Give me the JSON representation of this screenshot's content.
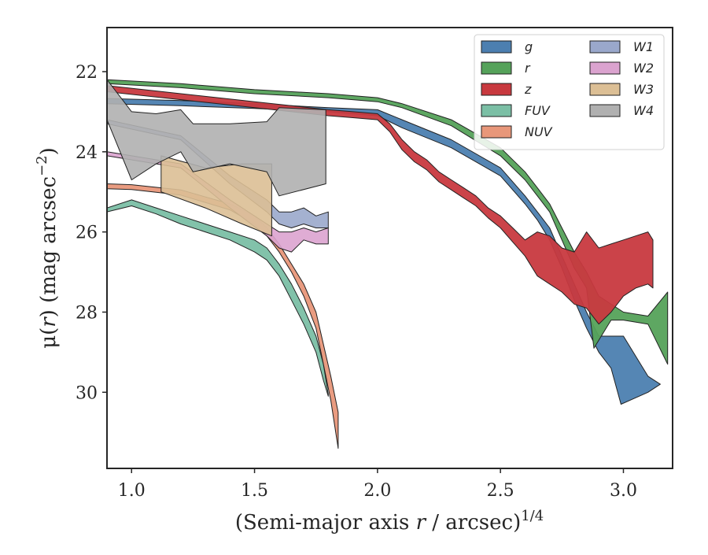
{
  "chart_data": {
    "type": "area",
    "xlabel_main": "(Semi-major axis ",
    "xlabel_var": "r",
    "xlabel_tail": " / arcsec)",
    "xlabel_exp": "1/4",
    "ylabel_main": "μ(",
    "ylabel_var": "r",
    "ylabel_tail": ") (mag arcsec",
    "ylabel_exp": "−2",
    "ylabel_close": ")",
    "xlim": [
      0.9,
      3.2
    ],
    "ylim": [
      31.9,
      20.9
    ],
    "y_inverted": true,
    "xticks": [
      1.0,
      1.5,
      2.0,
      2.5,
      3.0
    ],
    "xtick_labels": [
      "1.0",
      "1.5",
      "2.0",
      "2.5",
      "3.0"
    ],
    "yticks": [
      22,
      24,
      26,
      28,
      30
    ],
    "ytick_labels": [
      "22",
      "24",
      "26",
      "28",
      "30"
    ],
    "grid": false,
    "legend_position": "top-right",
    "legend_columns": 2,
    "series": [
      {
        "name": "g",
        "color": "#4c7fb0",
        "upper": [
          [
            0.9,
            22.67
          ],
          [
            1.2,
            22.72
          ],
          [
            1.5,
            22.8
          ],
          [
            1.8,
            22.9
          ],
          [
            2.0,
            22.95
          ],
          [
            2.1,
            23.2
          ],
          [
            2.3,
            23.7
          ],
          [
            2.5,
            24.4
          ],
          [
            2.6,
            25.1
          ],
          [
            2.65,
            25.5
          ],
          [
            2.7,
            25.9
          ],
          [
            2.75,
            26.6
          ],
          [
            2.8,
            27.3
          ],
          [
            2.85,
            28.0
          ],
          [
            2.9,
            28.6
          ],
          [
            3.0,
            28.6
          ],
          [
            3.1,
            29.6
          ],
          [
            3.15,
            29.8
          ]
        ],
        "lower": [
          [
            0.9,
            22.8
          ],
          [
            1.2,
            22.85
          ],
          [
            1.5,
            22.92
          ],
          [
            1.8,
            23.0
          ],
          [
            2.0,
            23.1
          ],
          [
            2.1,
            23.4
          ],
          [
            2.3,
            23.9
          ],
          [
            2.5,
            24.6
          ],
          [
            2.6,
            25.3
          ],
          [
            2.65,
            25.7
          ],
          [
            2.7,
            26.2
          ],
          [
            2.75,
            26.9
          ],
          [
            2.8,
            27.7
          ],
          [
            2.85,
            28.4
          ],
          [
            2.9,
            29.0
          ],
          [
            2.95,
            29.4
          ],
          [
            2.99,
            30.3
          ],
          [
            3.1,
            30.0
          ],
          [
            3.15,
            29.8
          ]
        ]
      },
      {
        "name": "r",
        "color": "#55a25a",
        "upper": [
          [
            0.9,
            22.2
          ],
          [
            1.2,
            22.3
          ],
          [
            1.5,
            22.45
          ],
          [
            1.8,
            22.55
          ],
          [
            2.0,
            22.65
          ],
          [
            2.1,
            22.8
          ],
          [
            2.3,
            23.2
          ],
          [
            2.5,
            23.9
          ],
          [
            2.6,
            24.5
          ],
          [
            2.65,
            24.9
          ],
          [
            2.7,
            25.3
          ],
          [
            2.75,
            25.9
          ],
          [
            2.8,
            26.5
          ],
          [
            2.85,
            27.0
          ],
          [
            2.9,
            27.6
          ],
          [
            3.0,
            28.0
          ],
          [
            3.1,
            28.1
          ],
          [
            3.18,
            27.5
          ]
        ],
        "lower": [
          [
            0.9,
            22.3
          ],
          [
            1.2,
            22.4
          ],
          [
            1.5,
            22.55
          ],
          [
            1.8,
            22.65
          ],
          [
            2.0,
            22.75
          ],
          [
            2.1,
            22.9
          ],
          [
            2.3,
            23.35
          ],
          [
            2.5,
            24.1
          ],
          [
            2.6,
            24.7
          ],
          [
            2.65,
            25.1
          ],
          [
            2.7,
            25.5
          ],
          [
            2.75,
            26.2
          ],
          [
            2.8,
            26.9
          ],
          [
            2.85,
            27.4
          ],
          [
            2.88,
            28.9
          ],
          [
            2.95,
            28.2
          ],
          [
            3.0,
            28.2
          ],
          [
            3.1,
            28.3
          ],
          [
            3.18,
            29.3
          ]
        ]
      },
      {
        "name": "z",
        "color": "#c8393f",
        "upper": [
          [
            0.9,
            22.35
          ],
          [
            1.2,
            22.55
          ],
          [
            1.5,
            22.75
          ],
          [
            1.8,
            22.95
          ],
          [
            1.9,
            23.0
          ],
          [
            2.0,
            23.05
          ],
          [
            2.05,
            23.3
          ],
          [
            2.1,
            23.7
          ],
          [
            2.15,
            24.0
          ],
          [
            2.2,
            24.2
          ],
          [
            2.25,
            24.5
          ],
          [
            2.3,
            24.7
          ],
          [
            2.35,
            24.9
          ],
          [
            2.4,
            25.1
          ],
          [
            2.45,
            25.4
          ],
          [
            2.5,
            25.6
          ],
          [
            2.55,
            25.9
          ],
          [
            2.6,
            26.2
          ],
          [
            2.65,
            26.0
          ],
          [
            2.7,
            26.1
          ],
          [
            2.75,
            26.4
          ],
          [
            2.8,
            26.5
          ],
          [
            2.85,
            26.0
          ],
          [
            2.9,
            26.4
          ],
          [
            2.95,
            26.3
          ],
          [
            3.0,
            26.2
          ],
          [
            3.05,
            26.1
          ],
          [
            3.1,
            26.0
          ],
          [
            3.12,
            26.2
          ]
        ],
        "lower": [
          [
            0.9,
            22.5
          ],
          [
            1.2,
            22.7
          ],
          [
            1.5,
            22.9
          ],
          [
            1.8,
            23.1
          ],
          [
            1.9,
            23.15
          ],
          [
            2.0,
            23.2
          ],
          [
            2.05,
            23.5
          ],
          [
            2.1,
            23.95
          ],
          [
            2.15,
            24.25
          ],
          [
            2.2,
            24.45
          ],
          [
            2.25,
            24.75
          ],
          [
            2.3,
            24.95
          ],
          [
            2.35,
            25.15
          ],
          [
            2.4,
            25.35
          ],
          [
            2.45,
            25.65
          ],
          [
            2.5,
            25.9
          ],
          [
            2.55,
            26.25
          ],
          [
            2.6,
            26.6
          ],
          [
            2.65,
            27.1
          ],
          [
            2.7,
            27.3
          ],
          [
            2.75,
            27.5
          ],
          [
            2.8,
            27.8
          ],
          [
            2.85,
            27.9
          ],
          [
            2.9,
            28.3
          ],
          [
            2.95,
            28.0
          ],
          [
            3.0,
            27.6
          ],
          [
            3.05,
            27.4
          ],
          [
            3.1,
            27.3
          ],
          [
            3.12,
            27.4
          ]
        ]
      },
      {
        "name": "FUV",
        "color": "#7bbfa5",
        "upper": [
          [
            0.9,
            25.4
          ],
          [
            1.0,
            25.2
          ],
          [
            1.1,
            25.4
          ],
          [
            1.2,
            25.6
          ],
          [
            1.3,
            25.8
          ],
          [
            1.4,
            26.0
          ],
          [
            1.5,
            26.2
          ],
          [
            1.55,
            26.4
          ],
          [
            1.6,
            26.8
          ],
          [
            1.65,
            27.3
          ],
          [
            1.7,
            27.9
          ],
          [
            1.75,
            28.6
          ],
          [
            1.78,
            29.3
          ],
          [
            1.8,
            30.05
          ]
        ],
        "lower": [
          [
            0.9,
            25.5
          ],
          [
            1.0,
            25.35
          ],
          [
            1.1,
            25.55
          ],
          [
            1.2,
            25.8
          ],
          [
            1.3,
            26.0
          ],
          [
            1.4,
            26.2
          ],
          [
            1.5,
            26.5
          ],
          [
            1.55,
            26.7
          ],
          [
            1.6,
            27.1
          ],
          [
            1.65,
            27.7
          ],
          [
            1.7,
            28.3
          ],
          [
            1.75,
            29.0
          ],
          [
            1.78,
            29.7
          ],
          [
            1.8,
            30.1
          ]
        ]
      },
      {
        "name": "NUV",
        "color": "#e8977a",
        "upper": [
          [
            0.9,
            24.8
          ],
          [
            1.0,
            24.82
          ],
          [
            1.2,
            24.95
          ],
          [
            1.4,
            25.3
          ],
          [
            1.5,
            25.6
          ],
          [
            1.55,
            25.9
          ],
          [
            1.6,
            26.3
          ],
          [
            1.65,
            26.8
          ],
          [
            1.7,
            27.3
          ],
          [
            1.75,
            28.0
          ],
          [
            1.78,
            28.8
          ],
          [
            1.81,
            29.6
          ],
          [
            1.84,
            30.5
          ]
        ],
        "lower": [
          [
            0.9,
            24.92
          ],
          [
            1.0,
            24.94
          ],
          [
            1.2,
            25.08
          ],
          [
            1.4,
            25.45
          ],
          [
            1.5,
            25.8
          ],
          [
            1.55,
            26.1
          ],
          [
            1.6,
            26.5
          ],
          [
            1.65,
            27.0
          ],
          [
            1.7,
            27.6
          ],
          [
            1.75,
            28.4
          ],
          [
            1.78,
            29.3
          ],
          [
            1.81,
            30.2
          ],
          [
            1.84,
            31.4
          ]
        ]
      },
      {
        "name": "W1",
        "color": "#9aa8cb",
        "upper": [
          [
            0.9,
            23.2
          ],
          [
            1.2,
            23.6
          ],
          [
            1.4,
            24.6
          ],
          [
            1.55,
            25.2
          ],
          [
            1.6,
            25.5
          ],
          [
            1.65,
            25.5
          ],
          [
            1.7,
            25.4
          ],
          [
            1.75,
            25.6
          ],
          [
            1.8,
            25.5
          ]
        ],
        "lower": [
          [
            0.9,
            23.3
          ],
          [
            1.2,
            23.7
          ],
          [
            1.4,
            24.8
          ],
          [
            1.55,
            25.5
          ],
          [
            1.6,
            25.8
          ],
          [
            1.65,
            25.9
          ],
          [
            1.7,
            25.8
          ],
          [
            1.75,
            25.9
          ],
          [
            1.8,
            25.9
          ]
        ]
      },
      {
        "name": "W2",
        "color": "#dba3cf",
        "upper": [
          [
            0.9,
            24.0
          ],
          [
            1.2,
            24.3
          ],
          [
            1.4,
            25.2
          ],
          [
            1.55,
            25.8
          ],
          [
            1.6,
            26.0
          ],
          [
            1.65,
            26.0
          ],
          [
            1.7,
            25.9
          ],
          [
            1.75,
            26.0
          ],
          [
            1.8,
            25.9
          ]
        ],
        "lower": [
          [
            0.9,
            24.1
          ],
          [
            1.2,
            24.4
          ],
          [
            1.4,
            25.4
          ],
          [
            1.55,
            26.1
          ],
          [
            1.6,
            26.4
          ],
          [
            1.65,
            26.5
          ],
          [
            1.7,
            26.2
          ],
          [
            1.75,
            26.3
          ],
          [
            1.8,
            26.3
          ]
        ]
      },
      {
        "name": "W3",
        "color": "#dcbf95",
        "upper": [
          [
            1.12,
            24.1
          ],
          [
            1.3,
            24.4
          ],
          [
            1.45,
            24.3
          ],
          [
            1.57,
            24.3
          ]
        ],
        "lower": [
          [
            1.12,
            25.0
          ],
          [
            1.3,
            25.4
          ],
          [
            1.45,
            25.8
          ],
          [
            1.57,
            26.1
          ]
        ]
      },
      {
        "name": "W4",
        "color": "#b0b0b0",
        "upper": [
          [
            0.9,
            22.2
          ],
          [
            1.0,
            23.0
          ],
          [
            1.1,
            23.05
          ],
          [
            1.2,
            22.95
          ],
          [
            1.25,
            23.3
          ],
          [
            1.4,
            23.3
          ],
          [
            1.55,
            23.25
          ],
          [
            1.6,
            22.9
          ],
          [
            1.79,
            22.95
          ]
        ],
        "lower": [
          [
            0.9,
            23.2
          ],
          [
            1.0,
            24.7
          ],
          [
            1.1,
            24.3
          ],
          [
            1.2,
            24.0
          ],
          [
            1.25,
            24.5
          ],
          [
            1.4,
            24.3
          ],
          [
            1.55,
            24.5
          ],
          [
            1.6,
            25.1
          ],
          [
            1.79,
            24.8
          ]
        ]
      }
    ]
  }
}
